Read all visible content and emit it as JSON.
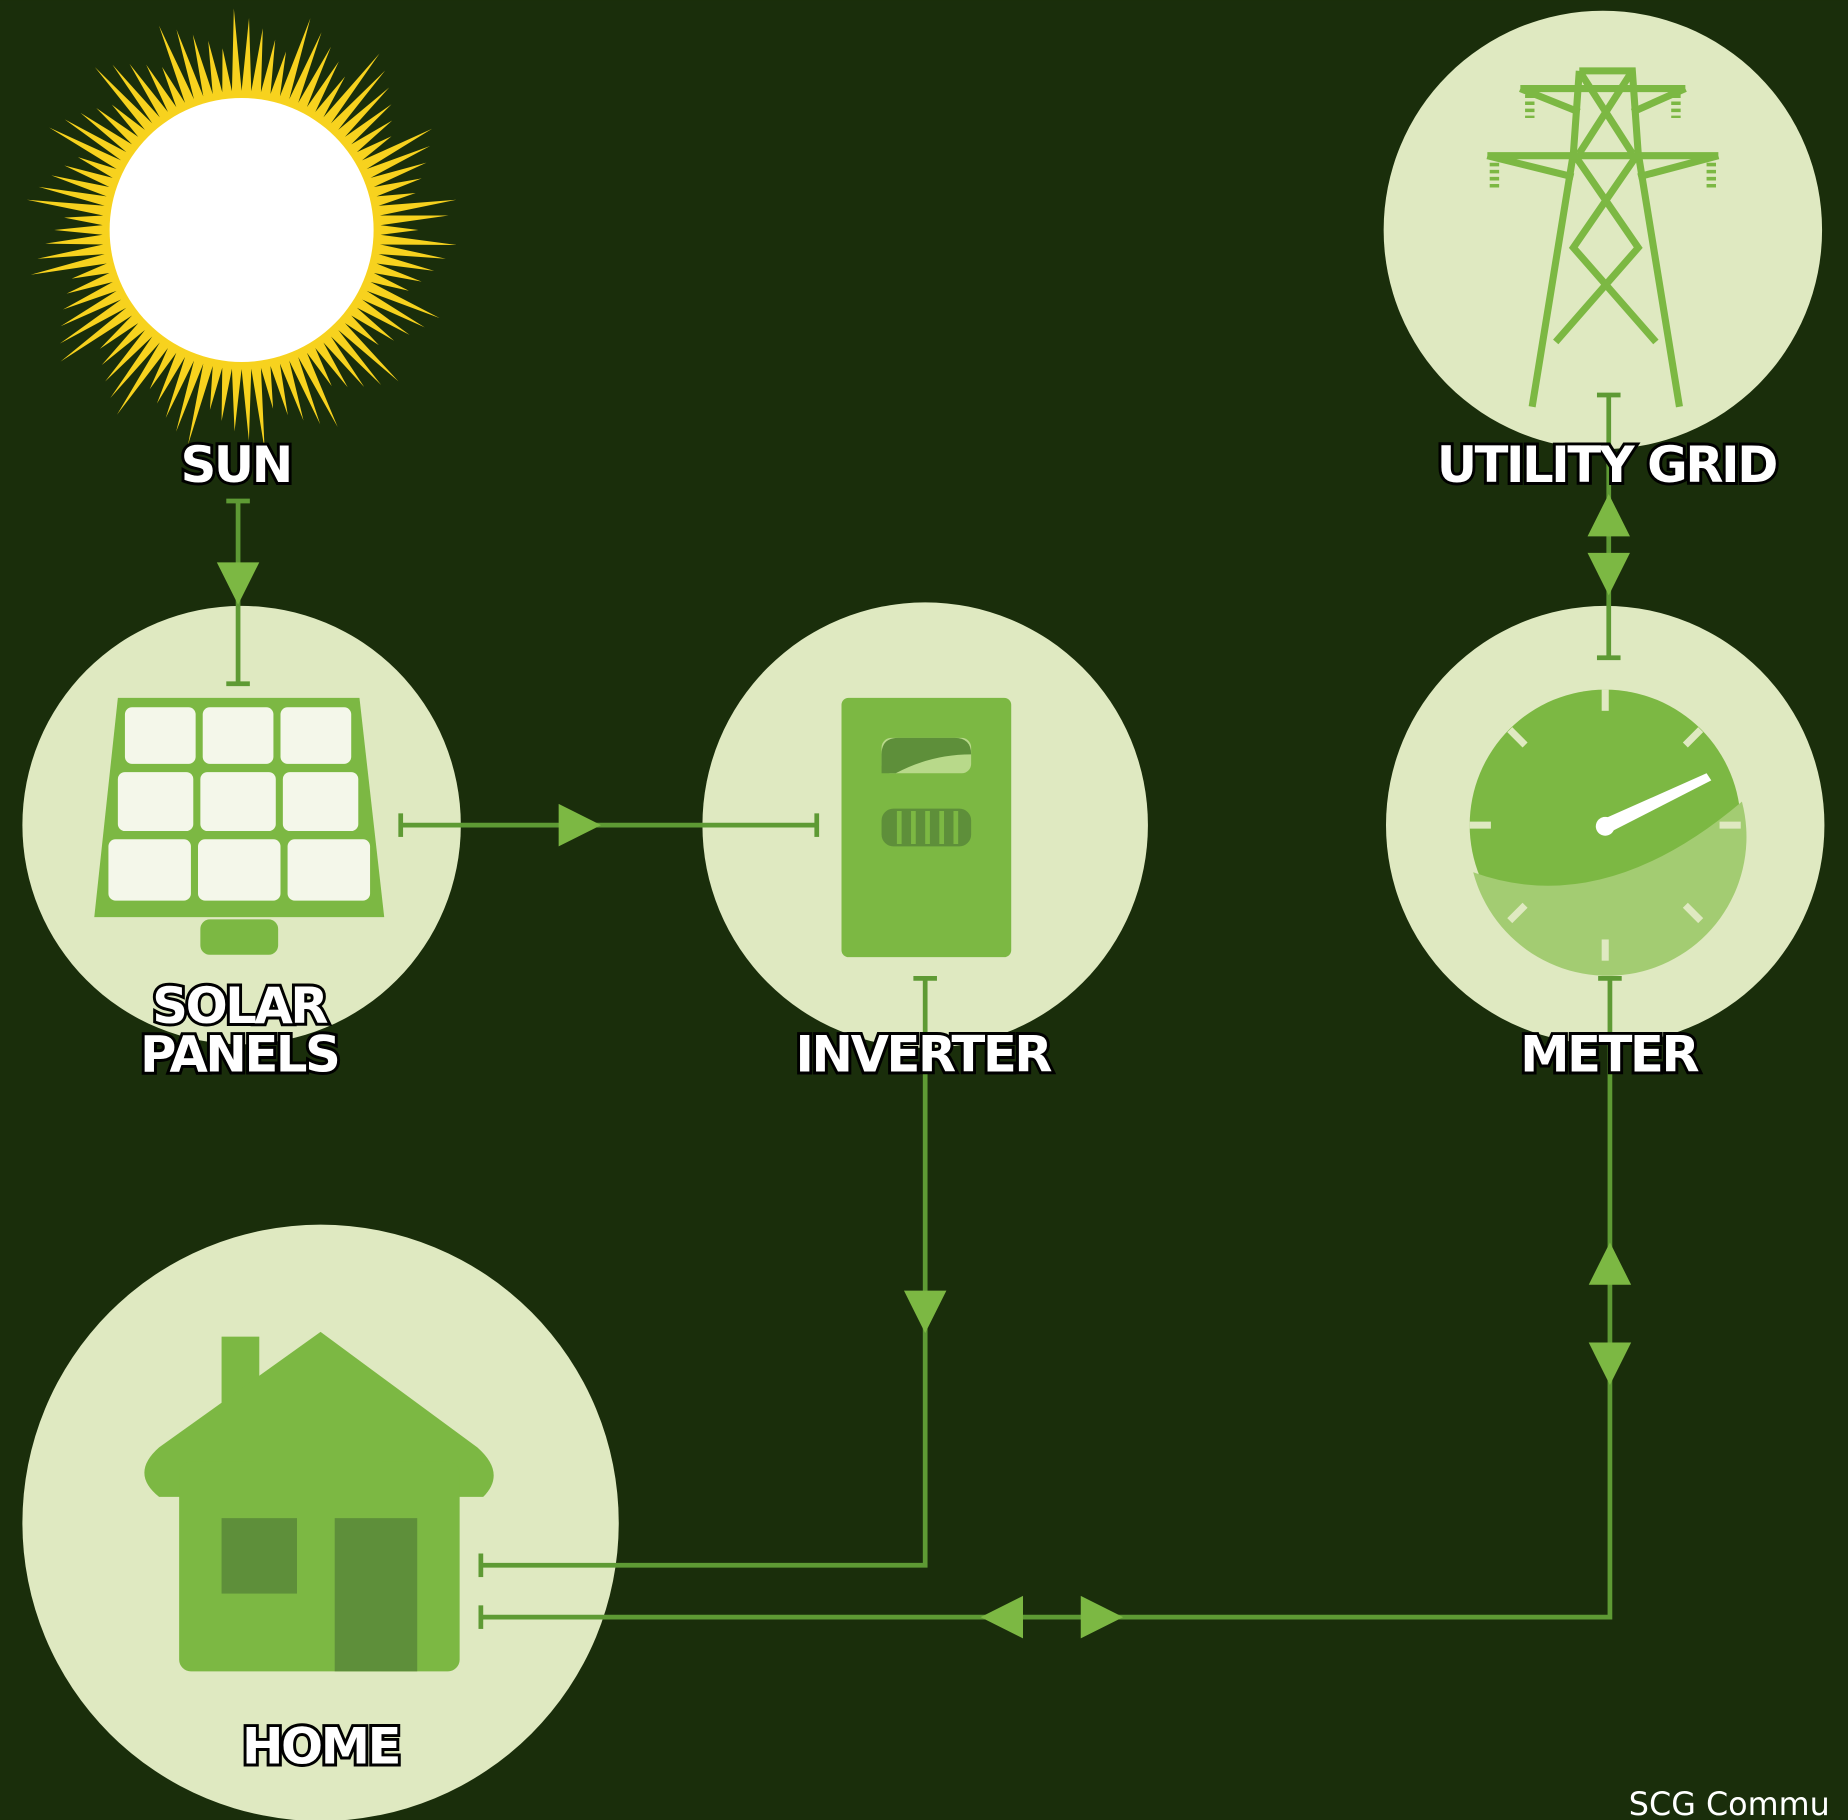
{
  "nodes": [
    {
      "label": "SUN"
    },
    {
      "label": "UTILITY GRID"
    },
    {
      "label_lines": [
        "SOLAR",
        "PANELS"
      ]
    },
    {
      "label": "INVERTER"
    },
    {
      "label": "METER"
    },
    {
      "label": "HOME"
    }
  ],
  "footer": {
    "text": "SCG Commu"
  }
}
